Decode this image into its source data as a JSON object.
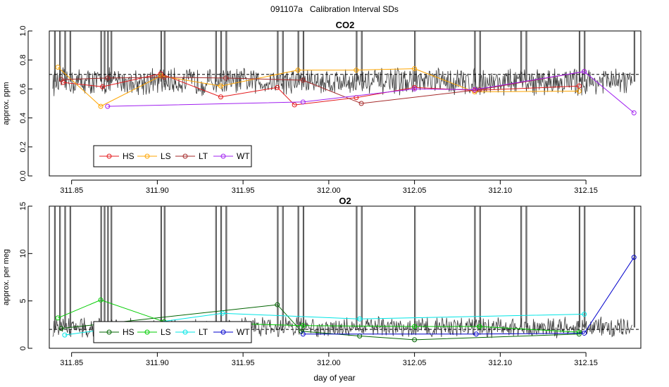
{
  "figure_title": "091107a   Calibration Interval SDs",
  "xlabel": "day of year",
  "colors": {
    "HS_co2": "#e41a1c",
    "LS_co2": "#ffa500",
    "LT_co2": "#a52a2a",
    "WT_co2": "#a020f0",
    "HS_o2": "#006400",
    "LS_o2": "#00cc00",
    "LT_o2": "#00e5e5",
    "WT_o2": "#0000cc",
    "trace": "#3a3a3a"
  },
  "chart_data": [
    {
      "type": "line",
      "title": "CO2",
      "ylabel": "approx. ppm",
      "xlim": [
        311.837,
        312.182
      ],
      "ylim": [
        0.0,
        1.0
      ],
      "yticks": [
        "0.0",
        "0.2",
        "0.4",
        "0.6",
        "0.8",
        "1.0"
      ],
      "yticks_values": [
        0.0,
        0.2,
        0.4,
        0.6,
        0.8,
        1.0
      ],
      "xticks": [
        "311.85",
        "311.90",
        "311.95",
        "312.00",
        "312.05",
        "312.10",
        "312.15"
      ],
      "xticks_values": [
        311.85,
        311.9,
        311.95,
        312.0,
        312.05,
        312.1,
        312.15
      ],
      "reference_line": 0.7,
      "legend": [
        "HS",
        "LS",
        "LT",
        "WT"
      ],
      "trace_baseline": 0.65,
      "trace_amplitude": 0.08,
      "spikes_x": [
        311.84,
        311.843,
        311.846,
        311.849,
        311.867,
        311.869,
        311.871,
        311.873,
        311.902,
        311.904,
        311.934,
        311.937,
        311.94,
        311.97,
        311.973,
        311.982,
        311.985,
        312.016,
        312.019,
        312.05,
        312.085,
        312.088,
        312.112,
        312.115,
        312.146,
        312.149,
        312.178
      ],
      "series": [
        {
          "name": "HS",
          "x": [
            311.845,
            311.868,
            311.902,
            311.937,
            311.97,
            311.98,
            312.016,
            312.05,
            312.085,
            312.146
          ],
          "y": [
            0.645,
            0.615,
            0.705,
            0.545,
            0.61,
            0.49,
            0.54,
            0.61,
            0.59,
            0.62
          ]
        },
        {
          "name": "LS",
          "x": [
            311.842,
            311.867,
            311.902,
            311.937,
            311.982,
            312.016,
            312.05,
            312.085,
            312.146
          ],
          "y": [
            0.75,
            0.48,
            0.69,
            0.62,
            0.73,
            0.73,
            0.74,
            0.58,
            0.585
          ]
        },
        {
          "name": "LT",
          "x": [
            311.844,
            311.871,
            311.904,
            311.94,
            311.985,
            312.019,
            312.088,
            312.149
          ],
          "y": [
            0.665,
            0.675,
            0.68,
            0.675,
            0.66,
            0.5,
            0.595,
            0.72
          ]
        },
        {
          "name": "WT",
          "x": [
            311.871,
            311.985,
            312.05,
            312.085,
            312.149,
            312.178
          ],
          "y": [
            0.48,
            0.51,
            0.6,
            0.595,
            0.72,
            0.435
          ]
        }
      ]
    },
    {
      "type": "line",
      "title": "O2",
      "ylabel": "approx. per meg",
      "xlim": [
        311.837,
        312.182
      ],
      "ylim": [
        0,
        15
      ],
      "yticks": [
        "0",
        "5",
        "10",
        "15"
      ],
      "yticks_values": [
        0,
        5,
        10,
        15
      ],
      "xticks": [
        "311.85",
        "311.90",
        "311.95",
        "312.00",
        "312.05",
        "312.10",
        "312.15"
      ],
      "xticks_values": [
        311.85,
        311.9,
        311.95,
        312.0,
        312.05,
        312.1,
        312.15
      ],
      "reference_line": 2.0,
      "legend": [
        "HS",
        "LS",
        "LT",
        "WT"
      ],
      "trace_baseline": 2.2,
      "trace_amplitude": 0.9,
      "spikes_x": [
        311.84,
        311.843,
        311.846,
        311.849,
        311.867,
        311.869,
        311.871,
        311.873,
        311.902,
        311.904,
        311.934,
        311.937,
        311.94,
        311.97,
        311.973,
        311.982,
        311.985,
        312.016,
        312.019,
        312.05,
        312.085,
        312.088,
        312.112,
        312.115,
        312.146,
        312.149,
        312.178
      ],
      "series": [
        {
          "name": "HS",
          "x": [
            311.844,
            311.97,
            311.984,
            312.018,
            312.05,
            312.146
          ],
          "y": [
            2.1,
            4.6,
            1.8,
            1.3,
            0.9,
            1.5
          ]
        },
        {
          "name": "LS",
          "x": [
            311.842,
            311.867,
            311.904,
            311.985,
            312.05,
            312.088,
            312.146
          ],
          "y": [
            3.2,
            5.1,
            2.8,
            2.4,
            2.3,
            2.3,
            1.7
          ]
        },
        {
          "name": "LT",
          "x": [
            311.846,
            311.938,
            312.018,
            312.149
          ],
          "y": [
            1.4,
            3.7,
            3.1,
            3.6
          ]
        },
        {
          "name": "WT",
          "x": [
            311.985,
            312.086,
            312.149,
            312.178
          ],
          "y": [
            1.5,
            1.5,
            1.6,
            9.6
          ]
        }
      ]
    }
  ]
}
